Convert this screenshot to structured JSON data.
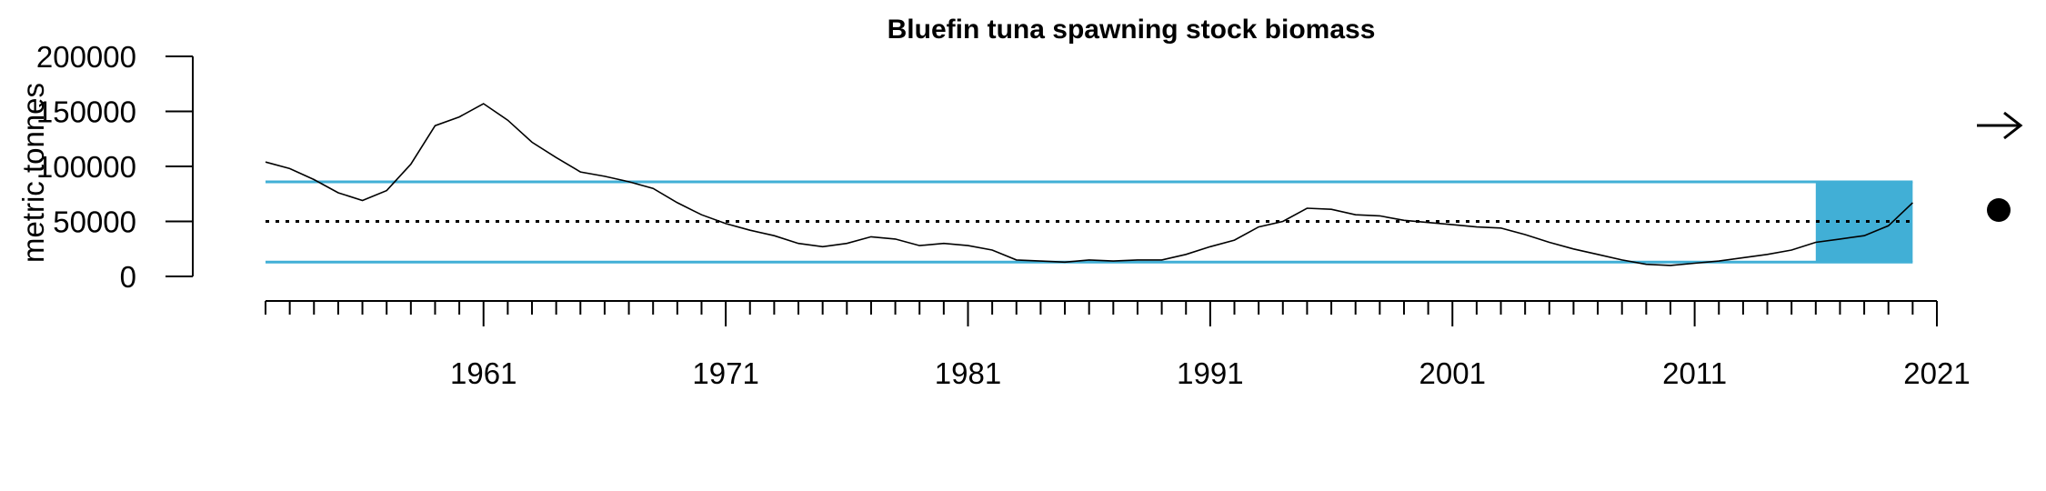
{
  "chart_data": {
    "type": "line",
    "title": "Bluefin tuna spawning stock biomass",
    "ylabel": "metric tonnes",
    "xlabel": "",
    "xlim": [
      1952,
      2021
    ],
    "ylim": [
      0,
      200000
    ],
    "y_ticks": [
      0,
      50000,
      100000,
      150000,
      200000
    ],
    "y_tick_labels": [
      "0",
      "50000",
      "100000",
      "150000",
      "200000"
    ],
    "x_major_ticks": [
      1961,
      1971,
      1981,
      1991,
      2001,
      2011,
      2021
    ],
    "x_major_labels": [
      "1961",
      "1971",
      "1981",
      "1991",
      "2001",
      "2011",
      "2021"
    ],
    "x_minor_start": 1952,
    "x_minor_end": 2021,
    "reference_lines": {
      "mean": 50000,
      "upper": 86000,
      "lower": 13000,
      "mean_style": "dotted",
      "band_color": "#41AFD6"
    },
    "highlight_period": {
      "start": 2016,
      "end": 2020,
      "color": "#41AFD6"
    },
    "indicators": {
      "trend": "arrow-right-icon",
      "status": "dot-icon"
    },
    "grid": false,
    "series": [
      {
        "x": [
          1952,
          1953,
          1954,
          1955,
          1956,
          1957,
          1958,
          1959,
          1960,
          1961,
          1962,
          1963,
          1964,
          1965,
          1966,
          1967,
          1968,
          1969,
          1970,
          1971,
          1972,
          1973,
          1974,
          1975,
          1976,
          1977,
          1978,
          1979,
          1980,
          1981,
          1982,
          1983,
          1984,
          1985,
          1986,
          1987,
          1988,
          1989,
          1990,
          1991,
          1992,
          1993,
          1994,
          1995,
          1996,
          1997,
          1998,
          1999,
          2000,
          2001,
          2002,
          2003,
          2004,
          2005,
          2006,
          2007,
          2008,
          2009,
          2010,
          2011,
          2012,
          2013,
          2014,
          2015,
          2016,
          2017,
          2018,
          2019,
          2020
        ],
        "values": [
          104000,
          98000,
          88000,
          76000,
          69000,
          78000,
          102000,
          137000,
          145000,
          157000,
          142000,
          122000,
          108000,
          95000,
          91000,
          86000,
          80000,
          67000,
          56000,
          48000,
          42000,
          37000,
          30000,
          27000,
          30000,
          36000,
          34000,
          28000,
          30000,
          28000,
          24000,
          15000,
          14000,
          13000,
          15000,
          14000,
          15000,
          15000,
          20000,
          27000,
          33000,
          45000,
          50000,
          62000,
          61000,
          56000,
          55000,
          51000,
          49000,
          47000,
          45000,
          44000,
          38000,
          31000,
          25000,
          20000,
          15000,
          11000,
          10000,
          12000,
          14000,
          17000,
          20000,
          24000,
          31000,
          34000,
          37000,
          46000,
          67000
        ]
      }
    ]
  }
}
